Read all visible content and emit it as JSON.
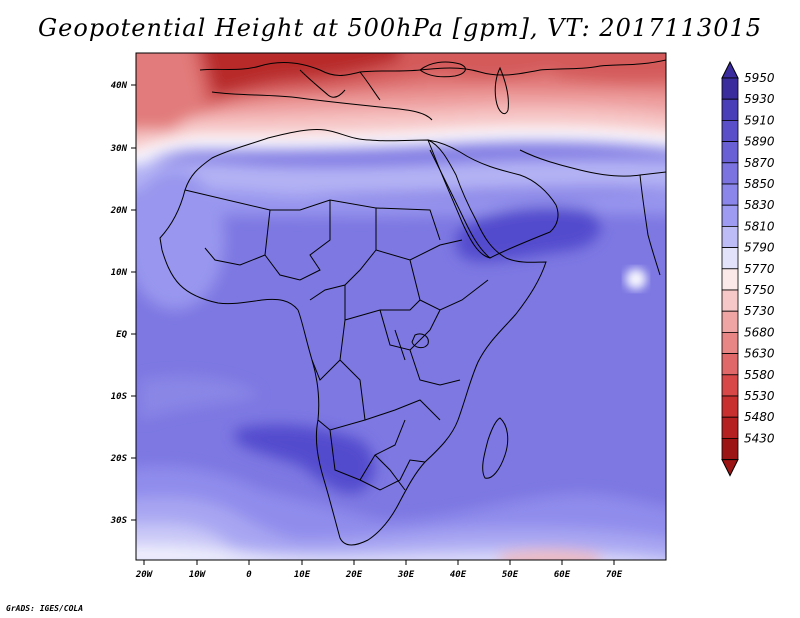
{
  "title": "Geopotential Height at 500hPa [gpm], VT: 2017113015",
  "credit": "GrADS: IGES/COLA",
  "map": {
    "region": "Africa and surrounding oceans",
    "x_ticks": [
      "20W",
      "10W",
      "0",
      "10E",
      "20E",
      "30E",
      "40E",
      "50E",
      "60E",
      "70E"
    ],
    "y_ticks": [
      "40N",
      "30N",
      "20N",
      "10N",
      "EQ",
      "10S",
      "20S",
      "30S"
    ]
  },
  "colorbar": {
    "levels": [
      "5950",
      "5930",
      "5910",
      "5890",
      "5870",
      "5850",
      "5830",
      "5810",
      "5790",
      "5770",
      "5750",
      "5730",
      "5680",
      "5630",
      "5580",
      "5530",
      "5480",
      "5430"
    ],
    "colors": [
      "#3a2c9c",
      "#4a3db8",
      "#5a4fc9",
      "#6a60d6",
      "#7a73e0",
      "#8a86ea",
      "#9d9bf2",
      "#bdbcf6",
      "#e2e2fb",
      "#fbe8e8",
      "#f6c8c8",
      "#f0a5a5",
      "#e88585",
      "#e06868",
      "#d84848",
      "#c83030",
      "#b52020",
      "#9c1414"
    ]
  },
  "colors": {
    "deep_red": "#a51a1a",
    "mid_red": "#e88a8a",
    "light_red": "#f7c6c6",
    "white": "#fbfbff",
    "light_blue": "#c9c8f7",
    "mid_blue": "#8e8bea",
    "deep_blue": "#5b54d2",
    "coast": "#000000"
  }
}
